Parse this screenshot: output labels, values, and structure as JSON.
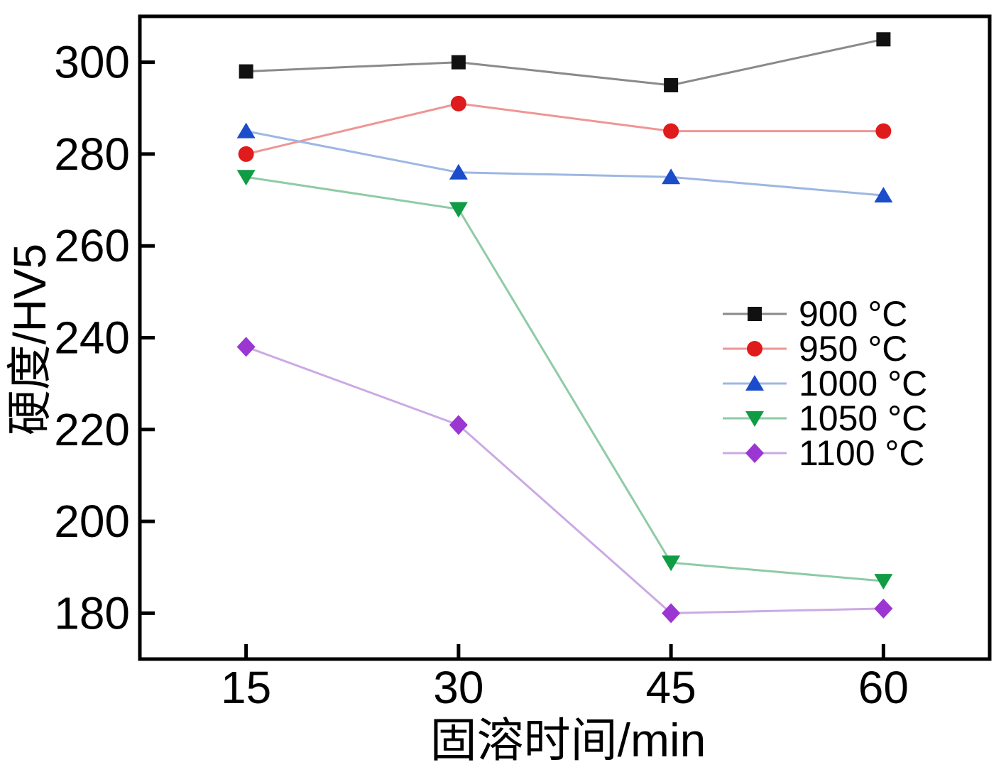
{
  "figure": {
    "background": "#ffffff",
    "frame_color": "#000000"
  },
  "chart_data": {
    "type": "line",
    "title": "",
    "xlabel": "固溶时间/min",
    "ylabel": "硬度/HV5",
    "x": [
      15,
      30,
      45,
      60
    ],
    "x_tick_labels": [
      "15",
      "30",
      "45",
      "60"
    ],
    "y_ticks": [
      180,
      200,
      220,
      240,
      260,
      280,
      300
    ],
    "xlim": [
      7.5,
      67.5
    ],
    "ylim": [
      170,
      310
    ],
    "grid": false,
    "tick_direction": "in",
    "legend_position": "inside-right",
    "series": [
      {
        "name": "900 °C",
        "marker": "square",
        "color": "#111111",
        "line_color": "#8a8a8a",
        "values": [
          298,
          300,
          295,
          305
        ]
      },
      {
        "name": "950 °C",
        "marker": "circle",
        "color": "#e01b1b",
        "line_color": "#ef9595",
        "values": [
          280,
          291,
          285,
          285
        ]
      },
      {
        "name": "1000 °C",
        "marker": "triangle-up",
        "color": "#1a4ccc",
        "line_color": "#9db7e3",
        "values": [
          285,
          276,
          275,
          271
        ]
      },
      {
        "name": "1050 °C",
        "marker": "triangle-down",
        "color": "#109b45",
        "line_color": "#8ecba6",
        "values": [
          275,
          268,
          191,
          187
        ]
      },
      {
        "name": "1100 °C",
        "marker": "diamond",
        "color": "#9b36d2",
        "line_color": "#cbaae4",
        "values": [
          238,
          221,
          180,
          181
        ]
      }
    ]
  }
}
